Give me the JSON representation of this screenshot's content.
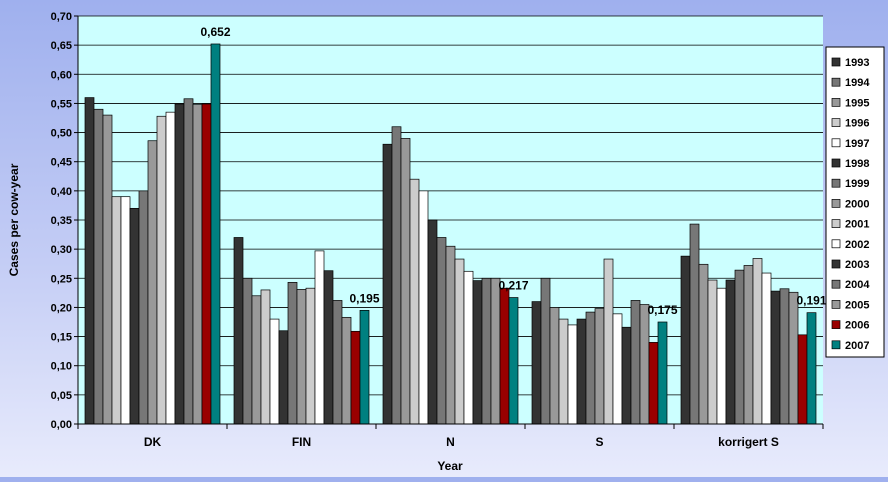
{
  "chart_data": {
    "type": "bar",
    "title": "",
    "xlabel": "Year",
    "ylabel": "Cases per cow-year",
    "ylim": [
      0,
      0.7
    ],
    "ytick_step": 0.05,
    "grid": true,
    "legend_position": "right",
    "plot_background": "#ccffff",
    "categories": [
      "DK",
      "FIN",
      "N",
      "S",
      "korrigert S"
    ],
    "series": [
      {
        "name": "1993",
        "color": "#333333",
        "values": [
          0.56,
          0.32,
          0.48,
          0.21,
          0.288
        ]
      },
      {
        "name": "1994",
        "color": "#777777",
        "values": [
          0.54,
          0.25,
          0.51,
          0.25,
          0.343
        ]
      },
      {
        "name": "1995",
        "color": "#999999",
        "values": [
          0.53,
          0.22,
          0.49,
          0.2,
          0.274
        ]
      },
      {
        "name": "1996",
        "color": "#cccccc",
        "values": [
          0.39,
          0.23,
          0.42,
          0.18,
          0.247
        ]
      },
      {
        "name": "1997",
        "color": "#ffffff",
        "values": [
          0.39,
          0.18,
          0.4,
          0.17,
          0.233
        ]
      },
      {
        "name": "1998",
        "color": "#333333",
        "values": [
          0.37,
          0.16,
          0.35,
          0.18,
          0.247
        ]
      },
      {
        "name": "1999",
        "color": "#777777",
        "values": [
          0.4,
          0.243,
          0.32,
          0.192,
          0.264
        ]
      },
      {
        "name": "2000",
        "color": "#999999",
        "values": [
          0.486,
          0.231,
          0.305,
          0.198,
          0.272
        ]
      },
      {
        "name": "2001",
        "color": "#cccccc",
        "values": [
          0.528,
          0.233,
          0.283,
          0.283,
          0.284
        ]
      },
      {
        "name": "2002",
        "color": "#ffffff",
        "values": [
          0.535,
          0.297,
          0.262,
          0.189,
          0.259
        ]
      },
      {
        "name": "2003",
        "color": "#333333",
        "values": [
          0.549,
          0.263,
          0.246,
          0.166,
          0.228
        ]
      },
      {
        "name": "2004",
        "color": "#777777",
        "values": [
          0.558,
          0.212,
          0.25,
          0.212,
          0.232
        ]
      },
      {
        "name": "2005",
        "color": "#999999",
        "values": [
          0.548,
          0.183,
          0.25,
          0.205,
          0.226
        ]
      },
      {
        "name": "2006",
        "color": "#990000",
        "values": [
          0.549,
          0.159,
          0.233,
          0.14,
          0.153
        ]
      },
      {
        "name": "2007",
        "color": "#008080",
        "values": [
          0.652,
          0.195,
          0.217,
          0.175,
          0.191
        ]
      }
    ],
    "data_labels": [
      {
        "series": "2007",
        "category": "DK",
        "text": "0,652"
      },
      {
        "series": "2007",
        "category": "FIN",
        "text": "0,195"
      },
      {
        "series": "2007",
        "category": "N",
        "text": "0,217"
      },
      {
        "series": "2007",
        "category": "S",
        "text": "0,175"
      },
      {
        "series": "2007",
        "category": "korrigert S",
        "text": "0,191"
      }
    ]
  }
}
